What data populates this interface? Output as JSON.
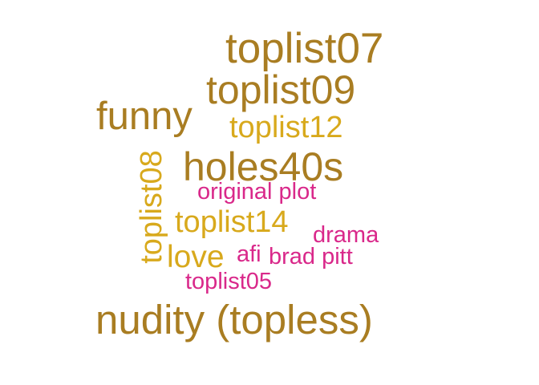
{
  "words": [
    {
      "id": "toplist07",
      "text": "toplist07",
      "color": "#a97d22"
    },
    {
      "id": "toplist09",
      "text": "toplist09",
      "color": "#a97d22"
    },
    {
      "id": "funny",
      "text": "funny",
      "color": "#a97d22"
    },
    {
      "id": "toplist12",
      "text": "toplist12",
      "color": "#d8a91c"
    },
    {
      "id": "toplist08",
      "text": "toplist08",
      "color": "#d8a91c"
    },
    {
      "id": "holes40s",
      "text": "holes40s",
      "color": "#a97d22"
    },
    {
      "id": "original_plot",
      "text": "original plot",
      "color": "#d9288a"
    },
    {
      "id": "toplist14",
      "text": "toplist14",
      "color": "#d8a91c"
    },
    {
      "id": "drama",
      "text": "drama",
      "color": "#d9288a"
    },
    {
      "id": "love",
      "text": "love",
      "color": "#d8a91c"
    },
    {
      "id": "afi",
      "text": "afi",
      "color": "#d9288a"
    },
    {
      "id": "brad_pitt",
      "text": "brad pitt",
      "color": "#d9288a"
    },
    {
      "id": "toplist05",
      "text": "toplist05",
      "color": "#d9288a"
    },
    {
      "id": "nudity",
      "text": "nudity (topless)",
      "color": "#a97d22"
    }
  ]
}
